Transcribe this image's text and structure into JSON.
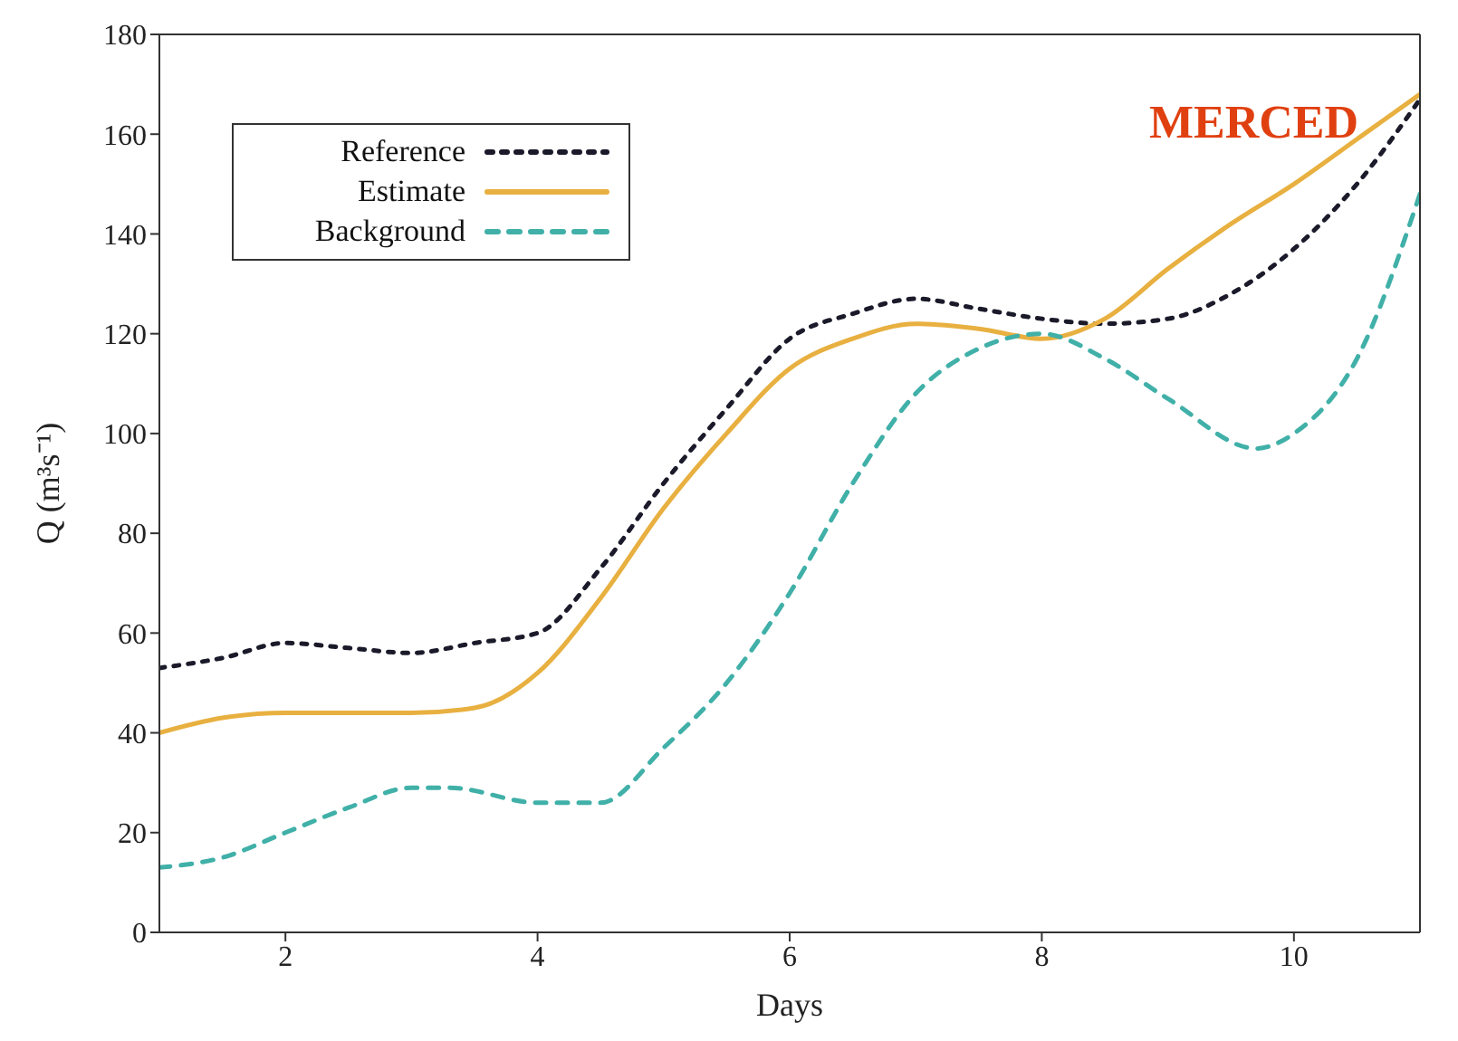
{
  "chart_data": {
    "type": "line",
    "xlabel": "Days",
    "ylabel": "Q (m³s⁻¹)",
    "xlim": [
      1,
      11
    ],
    "xticks": [
      2,
      4,
      6,
      8,
      10
    ],
    "ylim": [
      0,
      180
    ],
    "yticks": [
      0,
      20,
      40,
      60,
      80,
      100,
      120,
      140,
      160,
      180
    ],
    "grid": false,
    "legend": "top left",
    "marker": "none",
    "annotations": [
      "MERCED"
    ],
    "series": [
      {
        "name": "Reference",
        "color": "#1a1a2a",
        "line_style": "dotted",
        "x": [
          1,
          1.5,
          2,
          2.5,
          3,
          3.5,
          4,
          4.5,
          5,
          5.5,
          6,
          6.5,
          7,
          7.5,
          8,
          8.5,
          9,
          9.5,
          10,
          10.5,
          11
        ],
        "values": [
          53,
          55,
          58,
          57,
          56,
          58,
          60,
          73,
          90,
          105,
          119,
          124,
          127,
          125,
          123,
          122,
          123,
          128,
          137,
          150,
          167
        ]
      },
      {
        "name": "Estimate",
        "color": "#e8b040",
        "line_style": "solid",
        "x": [
          1,
          1.5,
          2,
          2.5,
          3,
          3.5,
          4,
          4.5,
          5,
          5.5,
          6,
          6.5,
          7,
          7.5,
          8,
          8.5,
          9,
          9.5,
          10,
          10.5,
          11
        ],
        "values": [
          40,
          43,
          44,
          44,
          44,
          45,
          52,
          67,
          85,
          100,
          113,
          119,
          122,
          121,
          119,
          123,
          133,
          142,
          150,
          159,
          168
        ]
      },
      {
        "name": "Background",
        "color": "#40b0a8",
        "line_style": "dashed",
        "x": [
          1,
          1.5,
          2,
          2.5,
          3,
          3.3,
          4,
          4.5,
          5,
          5.5,
          6,
          6.5,
          7,
          7.5,
          8,
          8.5,
          9,
          9.7,
          10,
          10.5,
          11
        ],
        "values": [
          13,
          15,
          20,
          25,
          29,
          29,
          26,
          26,
          37,
          50,
          68,
          90,
          108,
          117,
          120,
          115,
          107,
          97,
          100,
          115,
          148
        ]
      }
    ]
  }
}
